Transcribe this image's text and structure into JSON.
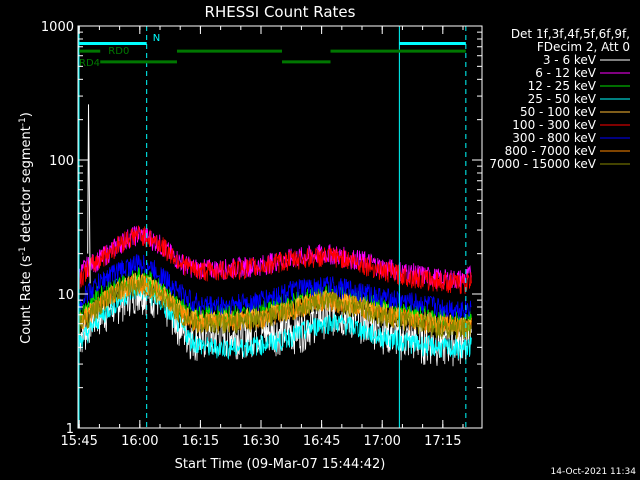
{
  "chart_data": {
    "type": "line",
    "title": "RHESSI Count Rates",
    "xlabel": "Start Time (09-Mar-07 15:44:42)",
    "ylabel_main": "Count Rate (s",
    "ylabel_sup": "-1",
    "ylabel_rest": " detector segment",
    "ylabel_sup2": "-1",
    "ylabel_close": ")",
    "yscale": "log",
    "ylim": [
      1,
      1000
    ],
    "xlim_minutes": [
      0,
      100
    ],
    "x_ticks": [
      {
        "label": "15:45",
        "m": 0.3
      },
      {
        "label": "16:00",
        "m": 15.3
      },
      {
        "label": "16:15",
        "m": 30.3
      },
      {
        "label": "16:30",
        "m": 45.3
      },
      {
        "label": "16:45",
        "m": 60.3
      },
      {
        "label": "17:00",
        "m": 75.3
      },
      {
        "label": "17:15",
        "m": 90.3
      }
    ],
    "y_ticks": [
      {
        "label": "1",
        "v": 1
      },
      {
        "label": "10",
        "v": 10
      },
      {
        "label": "100",
        "v": 100
      },
      {
        "label": "1000",
        "v": 1000
      }
    ],
    "legend": {
      "header1": "Det 1f,3f,4f,5f,6f,9f,",
      "header2": "FDecim 2, Att 0",
      "placement": "right"
    },
    "series": [
      {
        "name": "3 - 6 keV",
        "color": "#ffffff",
        "x": [
          0.3,
          2,
          3,
          5,
          8,
          12,
          15,
          17,
          20,
          23,
          26,
          28,
          30,
          33,
          36,
          40,
          45,
          50,
          55,
          60,
          63,
          66,
          70,
          73,
          75,
          80,
          85,
          90,
          95,
          97.5
        ],
        "y": [
          5.0,
          5.5,
          6.5,
          7.0,
          8.0,
          10.0,
          11.0,
          10.5,
          9.5,
          7.5,
          5.5,
          4.8,
          4.7,
          4.8,
          5.0,
          5.0,
          5.2,
          5.3,
          5.5,
          7.0,
          7.2,
          7.0,
          6.5,
          6.0,
          5.5,
          4.8,
          4.5,
          4.3,
          4.5,
          4.8
        ]
      },
      {
        "name": "6 - 12 keV",
        "color": "#ff00ff",
        "x": [
          0.3,
          2,
          5,
          8,
          12,
          15,
          17,
          20,
          23,
          26,
          28,
          30,
          33,
          36,
          40,
          45,
          50,
          55,
          60,
          63,
          66,
          70,
          73,
          75,
          80,
          85,
          90,
          95,
          97.5
        ],
        "y": [
          14,
          16,
          18,
          21,
          26,
          28,
          27,
          24,
          20,
          17,
          16,
          15.5,
          15.5,
          15.5,
          16,
          16.5,
          18,
          19,
          20,
          20,
          19,
          18,
          17,
          16,
          15,
          14,
          13,
          13,
          14
        ]
      },
      {
        "name": "12 - 25 keV",
        "color": "#00dd00",
        "x": [
          0.3,
          2,
          5,
          8,
          12,
          15,
          17,
          20,
          23,
          26,
          28,
          30,
          33,
          36,
          40,
          45,
          50,
          55,
          60,
          63,
          66,
          70,
          73,
          75,
          80,
          85,
          90,
          95,
          97.5
        ],
        "y": [
          7,
          8,
          10,
          11,
          12.5,
          13.5,
          13,
          11.5,
          9.5,
          7.8,
          7.2,
          7.0,
          7.0,
          7.0,
          7.2,
          7.5,
          8.2,
          9.2,
          10,
          10,
          9.5,
          9,
          8.5,
          8,
          7.5,
          7,
          6.5,
          6.3,
          6.5
        ]
      },
      {
        "name": "25 - 50 keV",
        "color": "#00ffff",
        "x": [
          0.3,
          2,
          5,
          8,
          12,
          15,
          17,
          20,
          23,
          26,
          28,
          30,
          33,
          36,
          40,
          45,
          50,
          55,
          60,
          63,
          66,
          70,
          73,
          75,
          80,
          85,
          90,
          95,
          97.5
        ],
        "y": [
          4.5,
          5,
          6.5,
          8,
          10,
          11,
          10.5,
          9,
          7,
          5.5,
          4.5,
          4.2,
          4.0,
          4.0,
          4.0,
          4.2,
          4.5,
          5.2,
          6,
          6.2,
          6,
          5.5,
          5,
          4.8,
          4.5,
          4.2,
          4.0,
          3.9,
          4.1
        ]
      },
      {
        "name": "50 - 100 keV",
        "color": "#ffbb33",
        "x": [
          0.3,
          2,
          5,
          8,
          12,
          15,
          17,
          20,
          23,
          26,
          28,
          30,
          33,
          36,
          40,
          45,
          50,
          55,
          60,
          63,
          66,
          70,
          73,
          75,
          80,
          85,
          90,
          95,
          97.5
        ],
        "y": [
          6.3,
          7,
          8.5,
          10,
          11.5,
          12.5,
          12,
          10.5,
          8.8,
          7.2,
          6.6,
          6.4,
          6.4,
          6.4,
          6.6,
          6.8,
          7.5,
          8.3,
          9.2,
          9.2,
          8.8,
          8.2,
          7.7,
          7.3,
          6.9,
          6.4,
          6.0,
          5.9,
          6.1
        ]
      },
      {
        "name": "100 - 300 keV",
        "color": "#ff0000",
        "x": [
          0.3,
          2,
          5,
          8,
          12,
          15,
          17,
          20,
          23,
          26,
          28,
          30,
          33,
          36,
          40,
          45,
          50,
          55,
          60,
          63,
          66,
          70,
          73,
          75,
          80,
          85,
          90,
          95,
          97.5
        ],
        "y": [
          13,
          15,
          18,
          21,
          26,
          28,
          27,
          24,
          20,
          17,
          15.5,
          15,
          15,
          15,
          15.5,
          16,
          17.5,
          18.5,
          19,
          19,
          18.5,
          17,
          16,
          15,
          14,
          13,
          12.5,
          12,
          12.5
        ]
      },
      {
        "name": "300 - 800 keV",
        "color": "#0000ff",
        "x": [
          0.3,
          2,
          5,
          8,
          12,
          15,
          17,
          20,
          23,
          26,
          28,
          30,
          33,
          36,
          40,
          45,
          50,
          55,
          60,
          63,
          66,
          70,
          73,
          75,
          80,
          85,
          90,
          95,
          97.5
        ],
        "y": [
          8.5,
          10,
          12,
          14,
          16,
          17,
          16.5,
          14.5,
          12,
          10,
          9,
          8.5,
          8.3,
          8.3,
          8.5,
          9,
          10,
          11,
          11.5,
          11.5,
          11,
          10.5,
          10,
          9.5,
          9,
          8.5,
          8,
          7.8,
          8
        ]
      },
      {
        "name": "800 - 7000 keV",
        "color": "#ff8800",
        "x": [
          0.3,
          2,
          5,
          8,
          12,
          15,
          17,
          20,
          23,
          26,
          28,
          30,
          33,
          36,
          40,
          45,
          50,
          55,
          60,
          63,
          66,
          70,
          73,
          75,
          80,
          85,
          90,
          95,
          97.5
        ],
        "y": [
          6,
          6.8,
          8.2,
          9.8,
          11.3,
          12.2,
          11.8,
          10.3,
          8.6,
          7,
          6.4,
          6.2,
          6.2,
          6.2,
          6.4,
          6.6,
          7.3,
          8.1,
          9,
          9,
          8.6,
          8,
          7.5,
          7.1,
          6.7,
          6.2,
          5.8,
          5.7,
          5.9
        ]
      },
      {
        "name": "7000 - 15000 keV",
        "color": "#888800",
        "x": [
          0.3,
          2,
          5,
          8,
          12,
          15,
          17,
          20,
          23,
          26,
          28,
          30,
          33,
          36,
          40,
          45,
          50,
          55,
          60,
          63,
          66,
          70,
          73,
          75,
          80,
          85,
          90,
          95,
          97.5
        ],
        "y": [
          5.8,
          6.5,
          8,
          9.5,
          11,
          12,
          11.5,
          10,
          8.4,
          6.8,
          6.2,
          6.0,
          6.0,
          6.0,
          6.2,
          6.4,
          7.1,
          7.9,
          8.8,
          8.8,
          8.4,
          7.8,
          7.3,
          6.9,
          6.5,
          6,
          5.6,
          5.5,
          5.7
        ]
      }
    ],
    "spike": {
      "x": [
        2.4,
        2.6,
        2.8,
        3.0
      ],
      "y": [
        20,
        260,
        60,
        12
      ],
      "color": "#ffffff"
    },
    "annotations": {
      "n_label": "N",
      "rd0_label": "RD0",
      "rd4_label": "RD4",
      "cyan_color": "#00ffff",
      "green_color": "#007700",
      "vlines_solid": [
        0.0,
        79.3
      ],
      "vlines_dashed": [
        17.0,
        96.0
      ],
      "cyan_bars": [
        {
          "from": 0.3,
          "to": 17.0,
          "v": 740
        },
        {
          "from": 79.5,
          "to": 96.0,
          "v": 740
        }
      ],
      "green_bars": [
        {
          "from": 0.3,
          "to": 5.5,
          "v": 650
        },
        {
          "from": 24.5,
          "to": 50.5,
          "v": 650
        },
        {
          "from": 62.5,
          "to": 96.0,
          "v": 650
        },
        {
          "from": 5.5,
          "to": 24.5,
          "v": 540
        },
        {
          "from": 50.5,
          "to": 62.5,
          "v": 540
        }
      ]
    },
    "footer_timestamp": "14-Oct-2021 11:34"
  }
}
